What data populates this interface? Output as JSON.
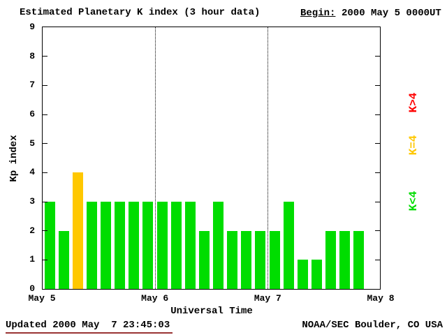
{
  "header": {
    "title": "Estimated Planetary K index (3 hour data)",
    "begin_label": "Begin:",
    "begin_value": "2000 May 5 0000UT"
  },
  "footer": {
    "updated": "Updated 2000 May  7 23:45:03",
    "credit": "NOAA/SEC Boulder, CO USA"
  },
  "colors": {
    "background": "#FFFFFF",
    "axis": "#000000",
    "updated_underline": "#993333"
  },
  "chart_data": {
    "type": "bar",
    "title": "Estimated Planetary K index (3 hour data)",
    "xlabel": "Universal Time",
    "ylabel": "Kp index",
    "ylim": [
      0,
      9
    ],
    "yticks": [
      0,
      1,
      2,
      3,
      4,
      5,
      6,
      7,
      8,
      9
    ],
    "x_tick_labels": [
      "May 5",
      "May 6",
      "May 7",
      "May 8"
    ],
    "bars_per_day": 8,
    "interval_hours": 3,
    "grid": "day-dividers-dotted",
    "series": [
      {
        "day": "May 5",
        "values": [
          3,
          2,
          4,
          3,
          3,
          3,
          3,
          3
        ]
      },
      {
        "day": "May 6",
        "values": [
          3,
          3,
          3,
          2,
          3,
          2,
          2,
          2
        ]
      },
      {
        "day": "May 7",
        "values": [
          2,
          3,
          1,
          1,
          2,
          2,
          2
        ]
      }
    ],
    "color_rules": {
      "below4": "#00DD00",
      "equal4": "#FFC800",
      "above4": "#FF0000"
    },
    "legend_position": "right-rotated",
    "legend": [
      {
        "label": "K>4",
        "color": "#FF0000"
      },
      {
        "label": "K=4",
        "color": "#FFC800"
      },
      {
        "label": "K<4",
        "color": "#00DD00"
      }
    ]
  }
}
